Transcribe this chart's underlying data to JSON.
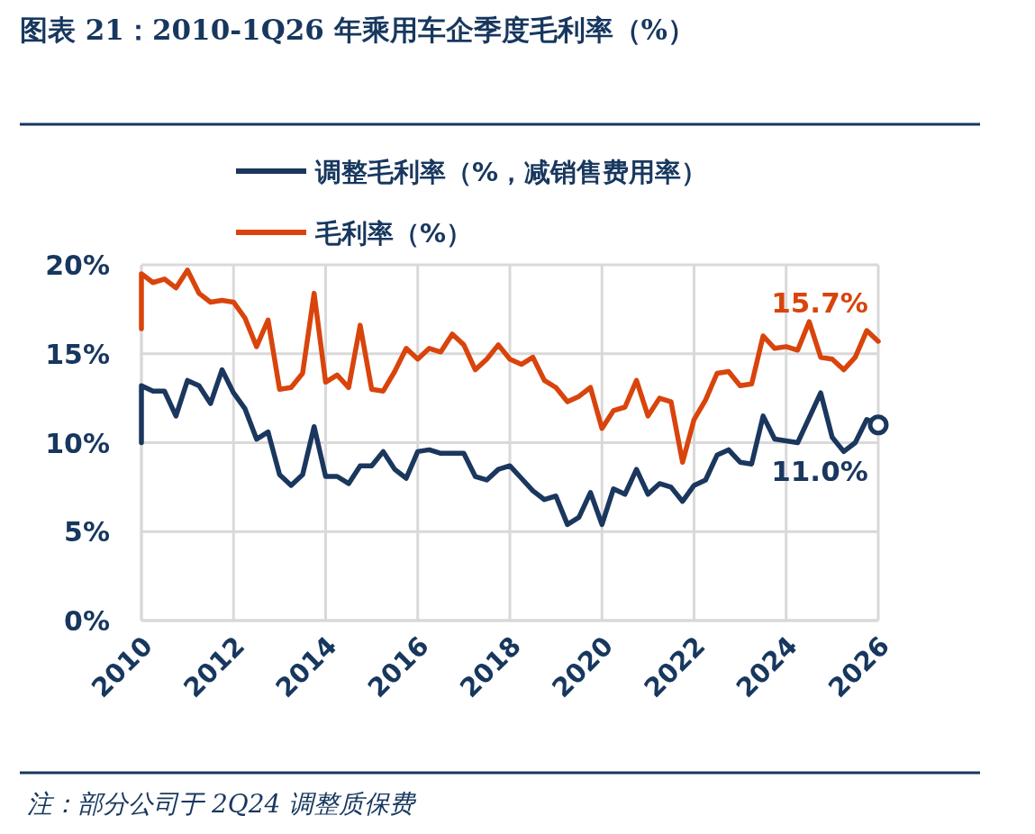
{
  "chart_data": {
    "type": "line",
    "title": "图表 21：2010-1Q26 年乘用车企季度毛利率（%）",
    "x": [
      2010,
      2010,
      2010.25,
      2010.5,
      2010.75,
      2011,
      2011.25,
      2011.5,
      2011.75,
      2012,
      2012.25,
      2012.5,
      2012.75,
      2013,
      2013.25,
      2013.5,
      2013.75,
      2014,
      2014.25,
      2014.5,
      2014.75,
      2015,
      2015.25,
      2015.5,
      2015.75,
      2016,
      2016.25,
      2016.5,
      2016.75,
      2017,
      2017.25,
      2017.5,
      2017.75,
      2018,
      2018.25,
      2018.5,
      2018.75,
      2019,
      2019.25,
      2019.5,
      2019.75,
      2020,
      2020.25,
      2020.5,
      2020.75,
      2021,
      2021.25,
      2021.5,
      2021.75,
      2022,
      2022.25,
      2022.5,
      2022.75,
      2023,
      2023.25,
      2023.5,
      2023.75,
      2024,
      2024.25,
      2024.5,
      2024.75,
      2025,
      2025.25,
      2025.5,
      2025.75,
      2026
    ],
    "series": [
      {
        "name": "调整毛利率（%，减销售费用率）",
        "color": "#1b375e",
        "values": [
          10.0,
          13.2,
          12.9,
          12.9,
          11.5,
          13.5,
          13.2,
          12.2,
          14.1,
          12.8,
          11.9,
          10.2,
          10.6,
          8.2,
          7.6,
          8.2,
          10.9,
          8.1,
          8.1,
          7.7,
          8.7,
          8.7,
          9.5,
          8.5,
          8.0,
          9.5,
          9.6,
          9.4,
          9.4,
          9.4,
          8.1,
          7.9,
          8.5,
          8.7,
          8.0,
          7.3,
          6.8,
          7.0,
          5.4,
          5.8,
          7.2,
          5.4,
          7.4,
          7.1,
          8.5,
          7.1,
          7.7,
          7.5,
          6.7,
          7.6,
          7.9,
          9.3,
          9.6,
          8.9,
          8.8,
          11.5,
          10.2,
          10.1,
          10.0,
          11.4,
          12.8,
          10.3,
          9.5,
          10.0,
          11.3,
          11.0
        ]
      },
      {
        "name": "毛利率（%）",
        "color": "#d9440c",
        "values": [
          16.4,
          19.5,
          19.0,
          19.2,
          18.7,
          19.7,
          18.4,
          17.9,
          18.0,
          17.9,
          17.0,
          15.4,
          16.9,
          13.0,
          13.1,
          13.9,
          18.4,
          13.4,
          13.8,
          13.1,
          16.6,
          13.0,
          12.9,
          14.0,
          15.3,
          14.7,
          15.3,
          15.1,
          16.1,
          15.5,
          14.1,
          14.7,
          15.5,
          14.7,
          14.4,
          14.8,
          13.5,
          13.1,
          12.3,
          12.6,
          13.1,
          10.8,
          11.8,
          12.0,
          13.5,
          11.5,
          12.5,
          12.3,
          8.9,
          11.3,
          12.4,
          13.9,
          14.0,
          13.2,
          13.3,
          16.0,
          15.3,
          15.4,
          15.2,
          16.8,
          14.8,
          14.7,
          14.1,
          14.8,
          16.3,
          15.7
        ]
      },
      {
        "type": "scatter",
        "marker": "circle",
        "color": "#1b375e",
        "x": [
          2026
        ],
        "values": [
          11.0
        ]
      }
    ],
    "xlim": [
      2010,
      2026
    ],
    "xticks": [
      2010,
      2012,
      2014,
      2016,
      2018,
      2020,
      2022,
      2024,
      2026
    ],
    "ylim": [
      0,
      20
    ],
    "yticks": [
      {
        "value": 0,
        "label": "0%"
      },
      {
        "value": 5,
        "label": "5%"
      },
      {
        "value": 10,
        "label": "10%"
      },
      {
        "value": 15,
        "label": "15%"
      },
      {
        "value": 20,
        "label": "20%"
      }
    ],
    "grid": true,
    "legend": "top",
    "annotations": [
      {
        "text": "15.7%",
        "x": 2026,
        "y": 15.7
      },
      {
        "text": "11.0%",
        "x": 2026,
        "y": 11.0
      },
      "注：部分公司于 2Q24 调整质保费"
    ]
  }
}
